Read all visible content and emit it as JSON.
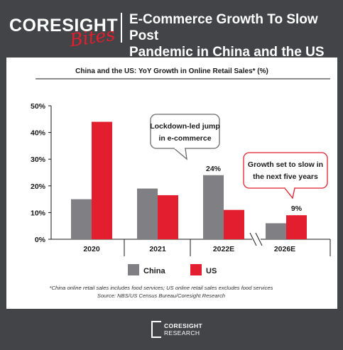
{
  "header": {
    "brand": "CORESIGHT",
    "brand_sub": "Bites",
    "headline_line1": "E-Commerce Growth To Slow Post",
    "headline_line2": "Pandemic in China and the US"
  },
  "footer": {
    "logo_line1": "CORESIGHT",
    "logo_line2": "RESEARCH"
  },
  "colors": {
    "background": "#434447",
    "panel": "#ffffff",
    "china": "#808084",
    "us": "#e31e2f",
    "text": "#1a1a1a"
  },
  "chart_data": {
    "type": "bar",
    "title": "China and the US: YoY Growth in Online Retail Sales* (%)",
    "categories": [
      "2020",
      "2021",
      "2022E",
      "2026E"
    ],
    "axis_break_before": "2026E",
    "series": [
      {
        "name": "China",
        "color": "#808084",
        "values": [
          15,
          19,
          24,
          6
        ]
      },
      {
        "name": "US",
        "color": "#e31e2f",
        "values": [
          44,
          16.5,
          11,
          9
        ]
      }
    ],
    "ylim": [
      0,
      50
    ],
    "yticks": [
      "0%",
      "10%",
      "20%",
      "30%",
      "40%",
      "50%"
    ],
    "legend_position": "bottom",
    "grid": false,
    "data_labels": [
      {
        "text": "24%",
        "category": "2022E",
        "series": "China"
      },
      {
        "text": "9%",
        "category": "2026E",
        "series": "US"
      }
    ],
    "callouts": [
      {
        "line1": "Lockdown-led jump",
        "line2": "in e-commerce",
        "style": "gray"
      },
      {
        "line1": "Growth set to slow in",
        "line2": "the next five years",
        "style": "red"
      }
    ],
    "notes": [
      "*China online retail sales includes food services; US online retail sales excludes food services",
      "Source: NBS/US Census Bureau/Coresight Research"
    ]
  }
}
